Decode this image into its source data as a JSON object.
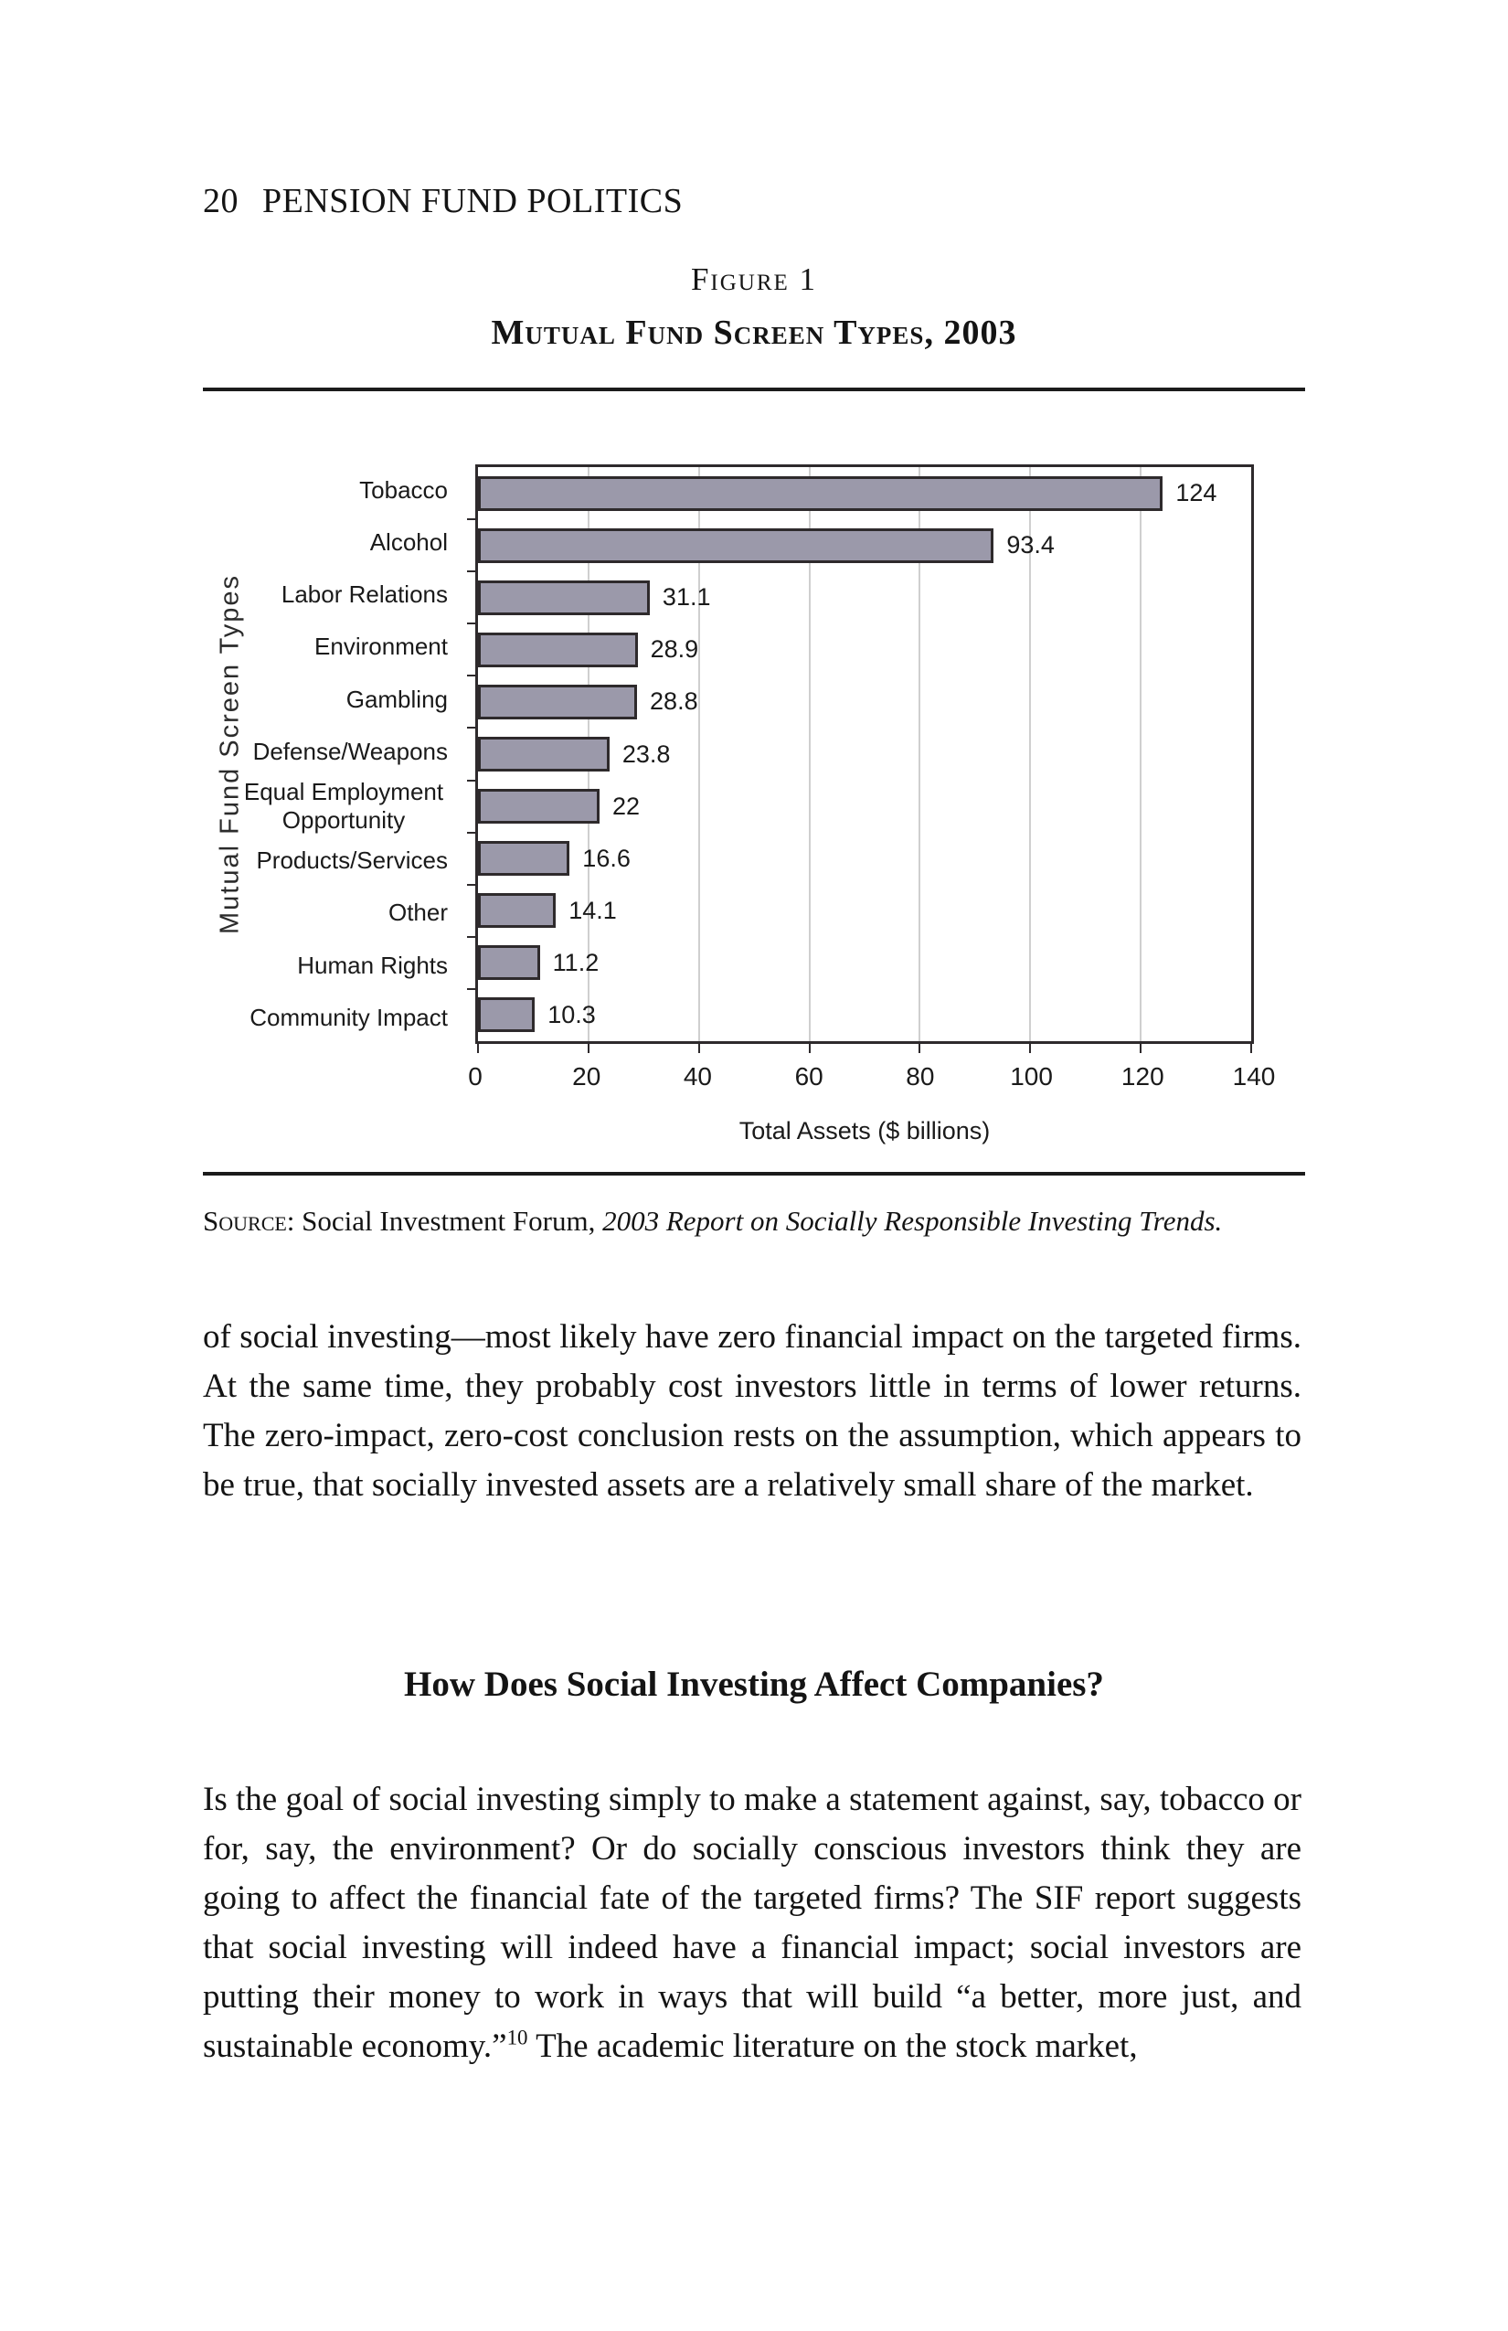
{
  "page": {
    "page_number": "20",
    "running_title": "PENSION FUND POLITICS"
  },
  "figure": {
    "label": "Figure 1",
    "title": "Mutual Fund Screen Types, 2003"
  },
  "chart_data": {
    "type": "bar",
    "orientation": "horizontal",
    "categories": [
      "Tobacco",
      "Alcohol",
      "Labor Relations",
      "Environment",
      "Gambling",
      "Defense/Weapons",
      "Equal Employment Opportunity",
      "Products/Services",
      "Other",
      "Human Rights",
      "Community Impact"
    ],
    "values": [
      124,
      93.4,
      31.1,
      28.9,
      28.8,
      23.8,
      22,
      16.6,
      14.1,
      11.2,
      10.3
    ],
    "value_labels": [
      "124",
      "93.4",
      "31.1",
      "28.9",
      "28.8",
      "23.8",
      "22",
      "16.6",
      "14.1",
      "11.2",
      "10.3"
    ],
    "xlabel": "Total Assets ($ billions)",
    "ylabel": "Mutual Fund Screen Types",
    "xlim": [
      0,
      140
    ],
    "xticks": [
      0,
      20,
      40,
      60,
      80,
      100,
      120,
      140
    ],
    "grid": true,
    "legend": "none",
    "bar_color": "#9b99aa",
    "bar_border_color": "#2e2a2c"
  },
  "source": {
    "label": "Source:",
    "text": " Social Investment Forum, ",
    "citation_italic": "2003 Report on Socially Responsible Investing Trends."
  },
  "body": {
    "para1": "of social investing—most likely have zero financial impact on the targeted firms. At the same time, they probably cost investors little in terms of lower returns. The zero-impact, zero-cost conclusion rests on the assumption, which appears to be true, that socially invested assets are a relatively small share of the market.",
    "heading": "How Does Social Investing Affect Companies?",
    "para2_before_note": "Is the goal of social investing simply to make a statement against, say, tobacco or for, say, the environment? Or do socially conscious investors think they are going to affect the financial fate of the targeted firms? The SIF report suggests that social investing will indeed have a financial impact; social investors are putting their money to work in ways that will build “a better, more just, and sustainable economy.”",
    "footnote_ref": "10",
    "para2_after_note": " The academic literature on the stock market,"
  }
}
